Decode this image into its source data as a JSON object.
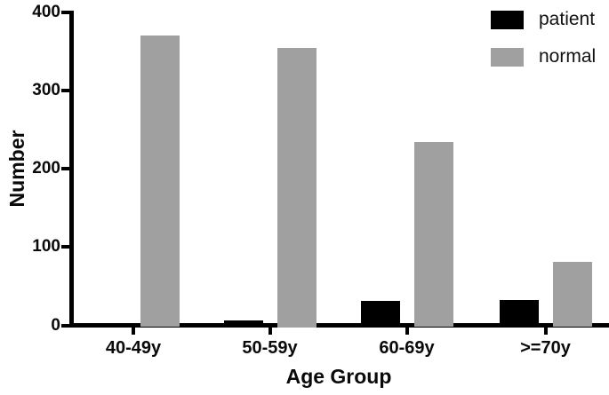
{
  "chart_data": {
    "type": "bar",
    "title": "",
    "xlabel": "Age Group",
    "ylabel": "Number",
    "categories": [
      "40-49y",
      "50-59y",
      "60-69y",
      ">=70y"
    ],
    "series": [
      {
        "name": "patient",
        "color": "#000000",
        "values": [
          0,
          6,
          31,
          32
        ]
      },
      {
        "name": "normal",
        "color": "#a0a0a0",
        "values": [
          371,
          355,
          234,
          81
        ]
      }
    ],
    "ylim": [
      0,
      400
    ],
    "yticks": [
      0,
      100,
      200,
      300,
      400
    ],
    "grid": false,
    "legend_position": "top-right"
  },
  "colors": {
    "axis": "#000000",
    "patient": "#000000",
    "normal": "#a0a0a0",
    "background": "#ffffff"
  }
}
